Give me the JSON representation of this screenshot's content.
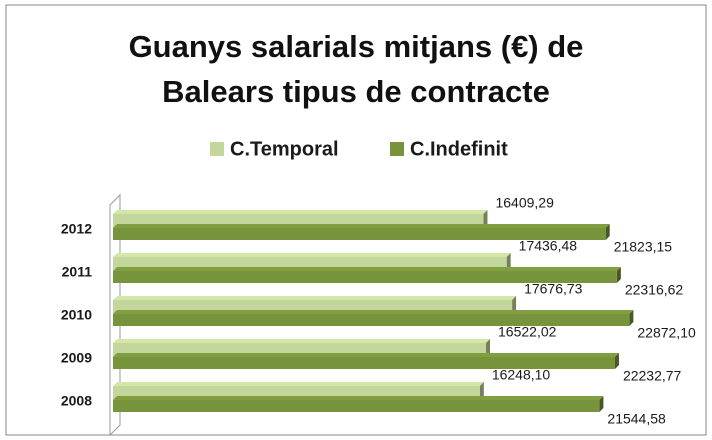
{
  "chart_data": {
    "type": "bar",
    "orientation": "horizontal",
    "title": "Guanys salarials mitjans (€) de Balears tipus de contracte",
    "categories": [
      "2008",
      "2009",
      "2010",
      "2011",
      "2012"
    ],
    "series": [
      {
        "name": "C.Temporal",
        "color": "#c3d69b",
        "values": [
          16248.1,
          16522.02,
          17676.73,
          17436.48,
          16409.29
        ],
        "value_labels": [
          "16248,10",
          "16522,02",
          "17676,73",
          "17436,48",
          "16409,29"
        ]
      },
      {
        "name": "C.Indefinit",
        "color": "#77933c",
        "values": [
          21544.58,
          22232.77,
          22872.1,
          22316.62,
          21823.15
        ],
        "value_labels": [
          "21544,58",
          "22232,77",
          "22872,10",
          "22316,62",
          "21823,15"
        ]
      }
    ],
    "xlim": [
      0,
      26000
    ],
    "legend": "top"
  }
}
